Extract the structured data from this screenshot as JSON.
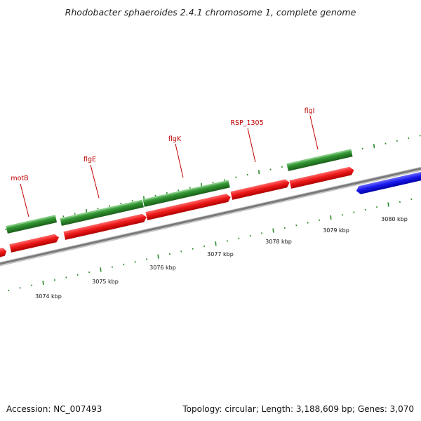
{
  "title": "Rhodobacter sphaeroides 2.4.1 chromosome 1, complete genome",
  "accession": "Accession: NC_007493",
  "summary": "Topology: circular; Length: 3,188,609 bp; Genes: 3,070",
  "colors": {
    "forward_gene": "#e01010",
    "reverse_gene": "#1818e0",
    "cds": "#2a8a2a",
    "backbone": "#8a8a8a",
    "tick": "#2a8a2a",
    "label": "#c00000"
  },
  "scale_labels": [
    "3074 kbp",
    "3075 kbp",
    "3076 kbp",
    "3077 kbp",
    "3078 kbp",
    "3079 kbp",
    "3080 kbp"
  ],
  "gene_labels": [
    "motB",
    "flgE",
    "flgK",
    "RSP_1305",
    "flgI"
  ]
}
